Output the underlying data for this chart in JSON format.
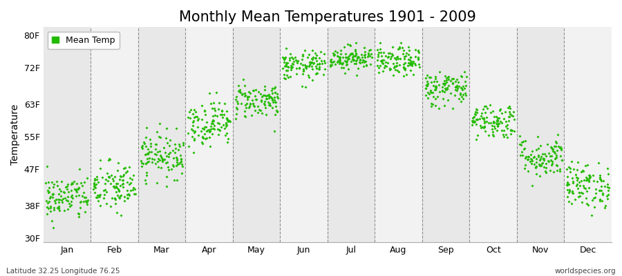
{
  "title": "Monthly Mean Temperatures 1901 - 2009",
  "ylabel": "Temperature",
  "yticks": [
    30,
    38,
    47,
    55,
    63,
    72,
    80
  ],
  "ytick_labels": [
    "30F",
    "38F",
    "47F",
    "55F",
    "63F",
    "72F",
    "80F"
  ],
  "ylim": [
    29,
    82
  ],
  "months": [
    "Jan",
    "Feb",
    "Mar",
    "Apr",
    "May",
    "Jun",
    "Jul",
    "Aug",
    "Sep",
    "Oct",
    "Nov",
    "Dec"
  ],
  "month_centers": [
    0.5,
    1.5,
    2.5,
    3.5,
    4.5,
    5.5,
    6.5,
    7.5,
    8.5,
    9.5,
    10.5,
    11.5
  ],
  "dot_color": "#22bb00",
  "legend_label": "Mean Temp",
  "bottom_left": "Latitude 32.25 Longitude 76.25",
  "bottom_right": "worldspecies.org",
  "n_years": 109,
  "monthly_mean_F": [
    40.0,
    42.5,
    50.5,
    58.5,
    64.0,
    72.5,
    74.5,
    73.5,
    67.0,
    59.0,
    50.0,
    43.0
  ],
  "monthly_std_F": [
    2.8,
    3.2,
    2.8,
    2.8,
    2.2,
    1.8,
    1.5,
    1.8,
    2.2,
    2.2,
    2.5,
    2.8
  ],
  "bg_colors": [
    "#e8e8e8",
    "#f2f2f2"
  ],
  "grid_color": "#666666",
  "title_fontsize": 15,
  "label_fontsize": 10,
  "tick_fontsize": 9,
  "dot_size": 4
}
